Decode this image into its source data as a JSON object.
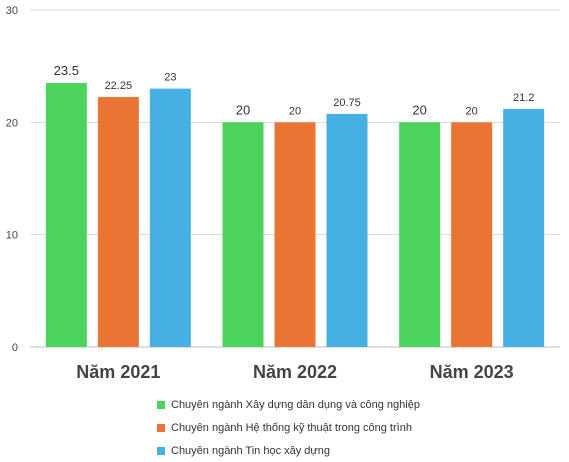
{
  "chart_data": {
    "type": "bar",
    "categories": [
      "Năm 2021",
      "Năm 2022",
      "Năm 2023"
    ],
    "series": [
      {
        "name": "Chuyên ngành Xây dựng dân dụng và công nghiệp",
        "color": "#4cd35c",
        "values": [
          23.5,
          20,
          20
        ],
        "labels": [
          "23.5",
          "20",
          "20"
        ]
      },
      {
        "name": "Chuyên ngành Hệ thống kỹ thuật trong công trình",
        "color": "#ea7434",
        "values": [
          22.25,
          20,
          20
        ],
        "labels": [
          "22.25",
          "20",
          "20"
        ]
      },
      {
        "name": "Chuyên ngành Tin học xây dựng",
        "color": "#45b0e1",
        "values": [
          23,
          20.75,
          21.2
        ],
        "labels": [
          "23",
          "20.75",
          "21.2"
        ]
      }
    ],
    "ylim": [
      0,
      30
    ],
    "yticks": [
      "0",
      "10",
      "20",
      "30"
    ],
    "grid": true,
    "legend_position": "bottom",
    "title": "",
    "xlabel": "",
    "ylabel": ""
  }
}
